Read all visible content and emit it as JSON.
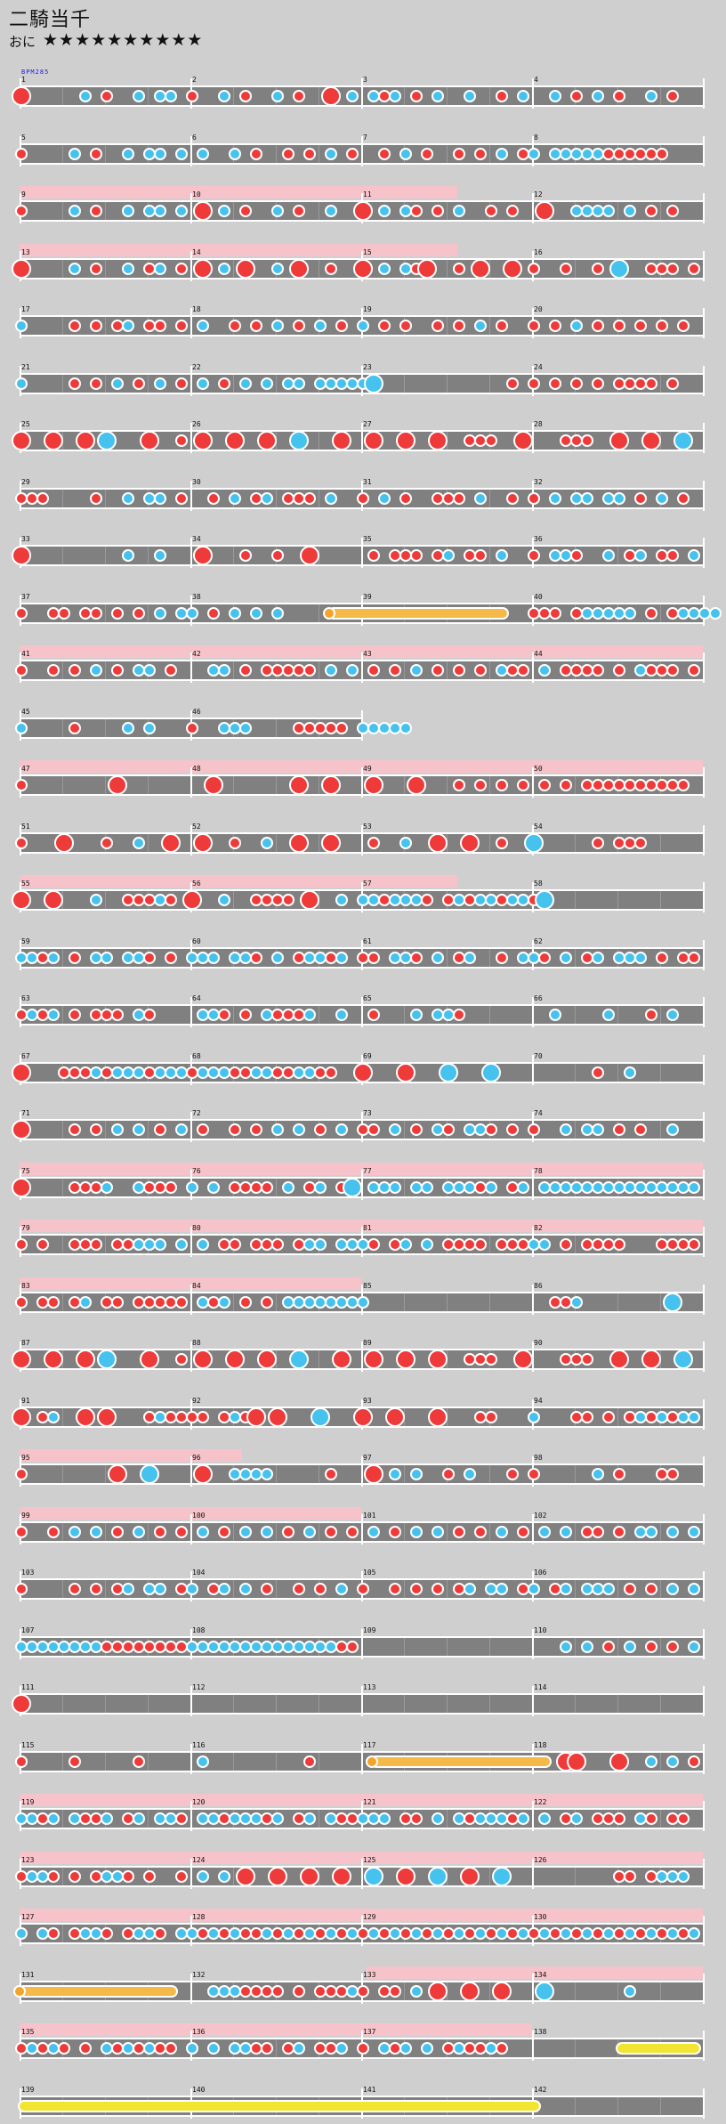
{
  "song": {
    "title": "二騎当千",
    "course_label": "おに",
    "stars_text": "★★★★★★★★★★",
    "level": 10
  },
  "bpm_tag": "BPM285",
  "colors": {
    "don": "#ef3a3a",
    "ka": "#45c3ee",
    "roll": "#f5b94a",
    "balloon": "#f2e532",
    "lane": "#808080",
    "gogo": "#f7c3ca",
    "background": "#cfcfcf"
  },
  "rows": [
    {
      "m": [
        1,
        2,
        3,
        4
      ],
      "n": "B.....k.d..k.kk.d..k.d..k.d..B.k.kdk.d.k..k..d.k..k.d.k.d..k.d."
    },
    {
      "m": [
        5,
        6,
        7,
        8
      ],
      "n": "d....k.d..k.kk.k.k..k.d..d.d.k.d..d.k.d..d.d.k.dk.kkkkkdddddd.."
    },
    {
      "m": [
        9,
        10,
        11,
        12
      ],
      "g": [
        0,
        512
      ],
      "n": "d....k.d..k.kk.k.B.k.d..k.d..k..B.k.kd.d.k..d.d..B..kkkk.k.d.d.."
    },
    {
      "m": [
        13,
        14,
        15,
        16
      ],
      "g": [
        0,
        512
      ],
      "n": "B....k.d..k.dk.d.B.k.B..k.B..d..B.k.kdB..d.B..B.d..d..d.K..ddd.d."
    },
    {
      "m": [
        17,
        18,
        19,
        20
      ],
      "n": "k....d.d.dk.dd.d.k..d.d.k.d.k.d.k.d.d..d.d.k.d..d.d.k.d.d.d.d.d."
    },
    {
      "m": [
        21,
        22,
        23,
        24
      ],
      "n": "k....d.d.k.d.k.d.k.d.k.k.kk.kkkkkK............d.d.d.d.d.dddd.d.."
    },
    {
      "m": [
        25,
        26,
        27,
        28
      ],
      "n": "B..B..B.K...B..d.B..B..B..K...B..B..B..B..ddd..B...ddd..B..B..K."
    },
    {
      "m": [
        29,
        30,
        31,
        32
      ],
      "n": "ddd....d..k.kk.d..d.k.dk.ddd.k..d.k.d..ddd.k..d.d.k.kk.kk.d.k.d."
    },
    {
      "m": [
        33,
        34,
        35,
        36
      ],
      "n": "B.........k..k...B...d..d..B.....d.ddd.dk.dd.k..d.kkd..k.dk.dd.k."
    },
    {
      "m": [
        37,
        38,
        39,
        40
      ],
      "n": "d..dd.dd.d.d.k.kk.d.k.k.k....Rrrrrrrrrrrrrrrrr..ddd.dkkkkk.d.dkkkk"
    },
    {
      "m": [
        41,
        42,
        43,
        44
      ],
      "g": [
        0,
        800
      ],
      "n": "d..d.d.k.d.kk.d...kk.d.ddddd.k.k.d.d.k.d.d.d.kdd.k.dddd.d.kddd.d"
    },
    {
      "m": [
        45,
        46
      ],
      "n": "k....d....k.k...d..kkk....ddddd.kkkkk..."
    },
    {
      "m": [
        47,
        48,
        49,
        50
      ],
      "g": [
        0,
        800
      ],
      "n": "d........B........B.......B..B...B...B...d.d.d.d.d.d.dddddddddd."
    },
    {
      "m": [
        51,
        52,
        53,
        54
      ],
      "n": "d...B...d..k..B..B..d..k..B..B...d..k..B..B..d..K.....d.ddd....."
    },
    {
      "m": [
        55,
        56,
        57,
        58
      ],
      "g": [
        0,
        512
      ],
      "n": "B..B...k..dddkd.B..k..dddd.B..k.kkdkkkd.dkdkkdkkdK.............."
    },
    {
      "m": [
        59,
        60,
        61,
        62
      ],
      "n": "kkdk.d.kk.kkd.d.kkk.kkd.k.dkkdk.dd.kkd.k.dk..d.kkd.k.dk.kkk.d.dd"
    },
    {
      "m": [
        63,
        64,
        65,
        66
      ],
      "n": "dkdk.d.ddd.kd....kkd.d.kdddk..k..d...k.kkd........k....k...d.k..."
    },
    {
      "m": [
        67,
        68,
        69,
        70
      ],
      "n": "B...dddkdkkkdkkkdkkkddkkddkkdd..B...B...K...K.........d..k......"
    },
    {
      "m": [
        71,
        72,
        73,
        74
      ],
      "n": "B....d.d.k.k.d.k.d..d.d.k.k.d.k.dd.k.d.kd.kkd.d.d..k.kk.d.d..k.."
    },
    {
      "m": [
        75,
        76,
        77,
        78
      ],
      "g": [
        0,
        800
      ],
      "n": "B....dddk..kddd.k.k.dddd.k.dk.dK.kkk.kk.kkkdk.dk.kkkkkkkkkkkkkkk"
    },
    {
      "m": [
        79,
        80,
        81,
        82
      ],
      "g": [
        0,
        800
      ],
      "n": "d.d..ddd.ddkkk.k.k.dd.ddd.dkk.kkkd.dk.k.dddd.dddkk.d.dddd...dddd"
    },
    {
      "m": [
        83,
        84,
        85,
        86
      ],
      "g": [
        0,
        400
      ],
      "n": "d.dd.dk.dd.ddddd.kdk.d.d.kkkkkkkk.................ddk........K..."
    },
    {
      "m": [
        87,
        88,
        89,
        90
      ],
      "n": "B..B..B.K...B..d.B..B..B..K...B..B..B..B..ddd..B...ddd..B..B..K."
    },
    {
      "m": [
        91,
        92,
        93,
        94
      ],
      "n": "B.dk..B.B...dkdddd.dkdB.B...K...B..B...B...dd...k...dd.d.dkdkdkk"
    },
    {
      "m": [
        95,
        96,
        97,
        98
      ],
      "g": [
        0,
        260
      ],
      "n": "d........B..K....B..kkkk.....d...B.k.k..d.k...d.d.....k.d...dd.."
    },
    {
      "m": [
        99,
        100,
        101,
        102
      ],
      "g": [
        0,
        400
      ],
      "n": "d..d.k.k.d.k.d.d.k.d.k.k.d.k.d.d.k.d.k.k.d.d.k.d.k.k.dd.d.kk.k.k"
    },
    {
      "m": [
        103,
        104,
        105,
        106
      ],
      "n": "d....d.d.dk.kk.dk.dk.k.d..d.d.k.d..d.d.d.dk.kk.dk.dk.kkk.d.d.k.k"
    },
    {
      "m": [
        107,
        108,
        109,
        110
      ],
      "n": "kkkkkkkkddddddddkkkkkkkkkkkkkkdd...................k.k.d.k.d.d.k."
    },
    {
      "m": [
        111,
        112,
        113,
        114
      ],
      "n": "B..............................................................."
    },
    {
      "m": [
        115,
        116,
        117,
        118
      ],
      "n": "d....d.....d.....k.........d.....Rrrrrrrrrrrrrrrrr.BB...B..k.k.d."
    },
    {
      "m": [
        119,
        120,
        121,
        122
      ],
      "g": [
        0,
        800
      ],
      "n": "kkdk.kddk.dk.kkd.kkdkkkdk.dk.kddkkk.dd.k.kdkkkdk.k.dk.ddd.kd.dd."
    },
    {
      "m": [
        123,
        124,
        125,
        126
      ],
      "g": [
        0,
        800
      ],
      "n": "dkkd.d.dkkd.d..d.k.k.B..B..B..B..K..B..K..B..K..........dd.dkkk."
    },
    {
      "m": [
        127,
        128,
        129,
        130
      ],
      "g": [
        0,
        800
      ],
      "n": "k.kd.dkkd.dkkd.kkdkdkddkdkdkdkdkdkdkdkdkdkdkdkdkdkdkdkdkdkdkdkdk"
    },
    {
      "m": [
        131,
        132,
        133,
        134
      ],
      "g": [
        406,
        800
      ],
      "n": "Rrrrrrrrrrrrrrr...kkkdddd.d.dddkd.dd.k.B..B..B...K.......k......"
    },
    {
      "m": [
        135,
        136,
        137,
        138
      ],
      "g": [
        0,
        600
      ],
      "n": "dkdkd.d.kdkdkdd.k.k.kkdd.dk.ddk.d.kdk.k.dkddkd..........YYYYYYYY"
    },
    {
      "m": [
        139,
        140,
        141,
        142
      ],
      "n": "YYYYYYYYYYYYYYYYYYYYYYYYYYYYYYYYYYYYYYYYYYYYYYYYY..............."
    }
  ]
}
